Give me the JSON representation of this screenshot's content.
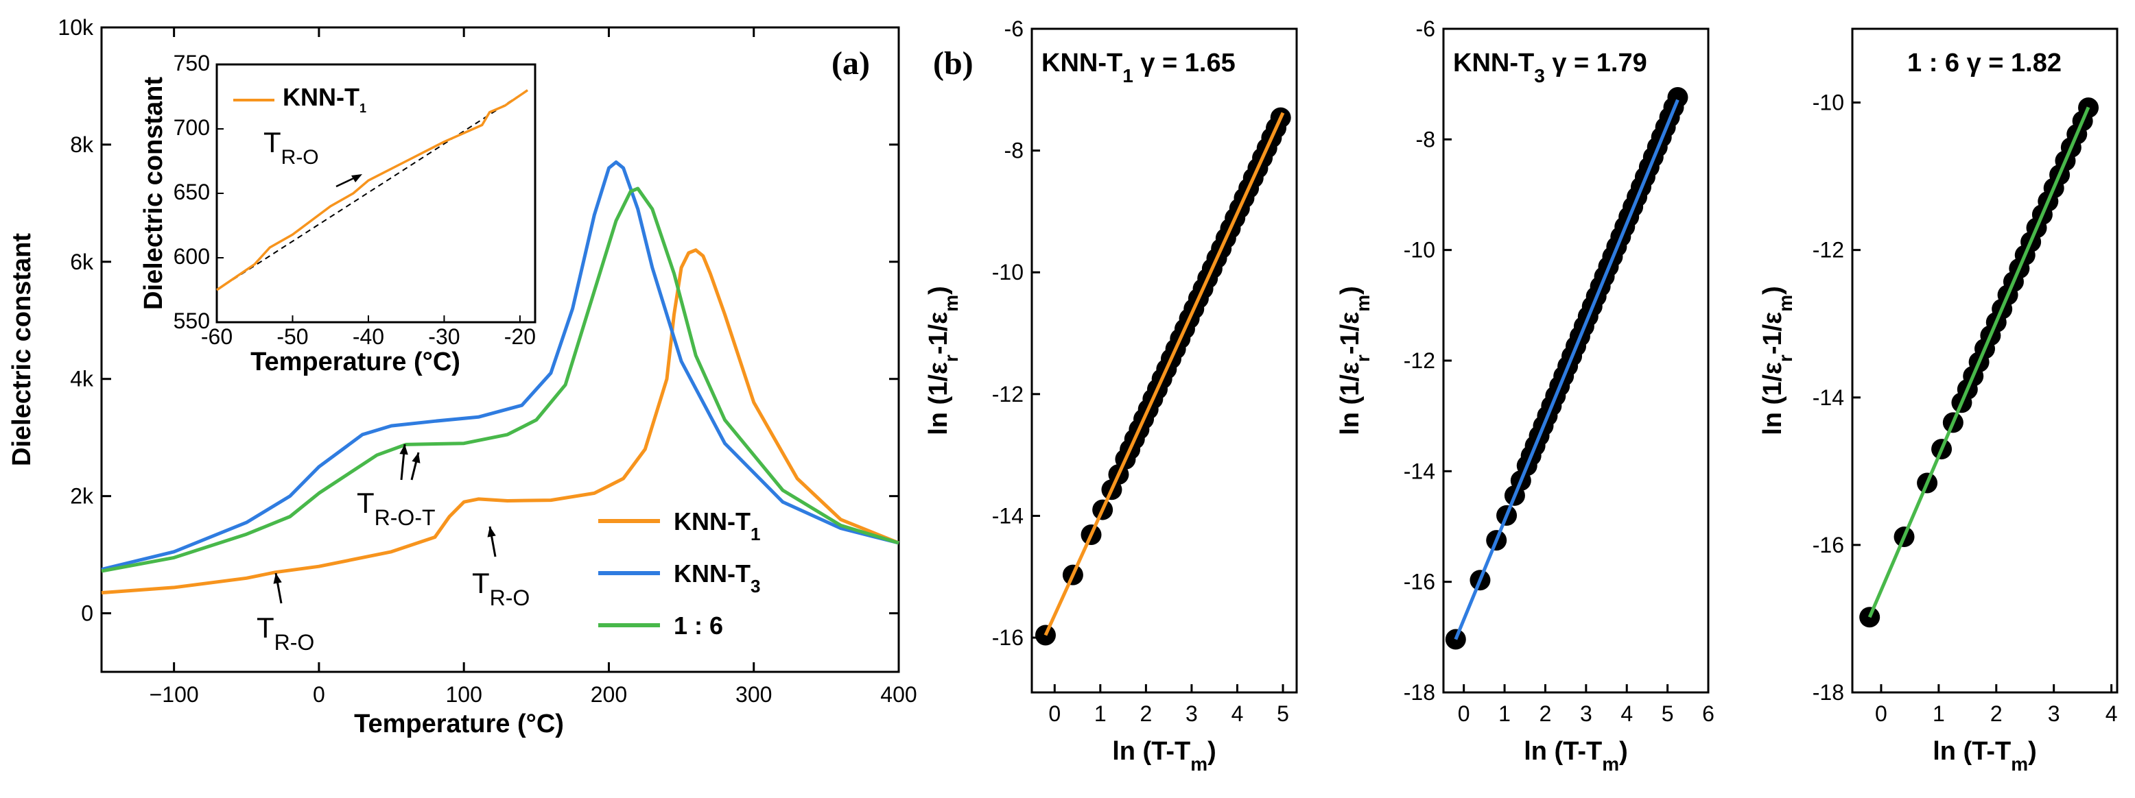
{
  "colors": {
    "orange": "#f7941d",
    "blue": "#2f7ce0",
    "green": "#48b84a",
    "black": "#000000"
  },
  "chart_data": [
    {
      "id": "a",
      "type": "line",
      "panel_label": "(a)",
      "xlabel": "Temperature (°C)",
      "ylabel": "Dielectric constant",
      "xlim": [
        -150,
        400
      ],
      "ylim": [
        -1000,
        10000
      ],
      "xticks": [
        {
          "v": -100,
          "label": "−100"
        },
        {
          "v": 0,
          "label": "0"
        },
        {
          "v": 100,
          "label": "100"
        },
        {
          "v": 200,
          "label": "200"
        },
        {
          "v": 300,
          "label": "300"
        },
        {
          "v": 400,
          "label": "400"
        }
      ],
      "yticks": [
        {
          "v": 0,
          "label": "0"
        },
        {
          "v": 2000,
          "label": "2k"
        },
        {
          "v": 4000,
          "label": "4k"
        },
        {
          "v": 6000,
          "label": "6k"
        },
        {
          "v": 8000,
          "label": "8k"
        },
        {
          "v": 10000,
          "label": "10k"
        }
      ],
      "legend_position": "bottom-right",
      "series": [
        {
          "name": "KNN-T",
          "sub": "1",
          "color": "#f7941d",
          "x": [
            -150,
            -100,
            -50,
            -30,
            0,
            50,
            80,
            90,
            100,
            110,
            130,
            160,
            190,
            210,
            225,
            240,
            245,
            250,
            255,
            260,
            265,
            270,
            280,
            300,
            330,
            360,
            400
          ],
          "y": [
            350,
            440,
            600,
            700,
            800,
            1050,
            1300,
            1650,
            1900,
            1950,
            1920,
            1930,
            2050,
            2300,
            2800,
            4000,
            5100,
            5900,
            6150,
            6200,
            6100,
            5800,
            5100,
            3600,
            2300,
            1600,
            1200
          ]
        },
        {
          "name": "KNN-T",
          "sub": "3",
          "color": "#2f7ce0",
          "x": [
            -150,
            -100,
            -50,
            -20,
            0,
            30,
            50,
            80,
            110,
            140,
            160,
            175,
            190,
            200,
            205,
            210,
            220,
            230,
            250,
            280,
            320,
            360,
            400
          ],
          "y": [
            750,
            1050,
            1550,
            2000,
            2500,
            3050,
            3200,
            3280,
            3350,
            3550,
            4100,
            5200,
            6800,
            7600,
            7700,
            7600,
            6900,
            5900,
            4300,
            2900,
            1900,
            1450,
            1200
          ]
        },
        {
          "name": "1 : 6",
          "sub": "",
          "color": "#48b84a",
          "x": [
            -150,
            -100,
            -50,
            -20,
            0,
            40,
            60,
            100,
            130,
            150,
            170,
            190,
            205,
            215,
            220,
            230,
            245,
            260,
            280,
            320,
            360,
            400
          ],
          "y": [
            720,
            950,
            1350,
            1650,
            2050,
            2700,
            2880,
            2900,
            3050,
            3300,
            3900,
            5500,
            6700,
            7200,
            7250,
            6900,
            5800,
            4400,
            3300,
            2100,
            1500,
            1200
          ]
        }
      ],
      "annotations": [
        {
          "main": "T",
          "sub": "R-O-T"
        },
        {
          "main": "T",
          "sub": "R-O"
        },
        {
          "main": "T",
          "sub": "R-O"
        }
      ]
    },
    {
      "id": "a-inset",
      "type": "line",
      "xlabel": "Temperature (°C)",
      "ylabel": "Dielectric constant",
      "xlim": [
        -60,
        -18
      ],
      "ylim": [
        550,
        750
      ],
      "xticks": [
        -60,
        -50,
        -40,
        -30,
        -20
      ],
      "yticks": [
        550,
        600,
        650,
        700,
        750
      ],
      "series": [
        {
          "name": "KNN-T",
          "sub": "1",
          "color": "#f7941d",
          "x": [
            -60,
            -55,
            -53,
            -50,
            -45,
            -42,
            -40,
            -35,
            -30,
            -25,
            -24,
            -22,
            -19
          ],
          "y": [
            575,
            595,
            608,
            618,
            640,
            650,
            660,
            675,
            690,
            703,
            713,
            718,
            730
          ]
        }
      ],
      "baseline": {
        "x": [
          -60,
          -19
        ],
        "y": [
          575,
          730
        ],
        "style": "dashed"
      },
      "annotations": [
        {
          "main": "T",
          "sub": "R-O"
        }
      ]
    },
    {
      "id": "b1",
      "type": "scatter",
      "panel_label": "(b)",
      "title": {
        "pre": "KNN-T",
        "sub": "1",
        "post": " γ = 1.65"
      },
      "xlabel": {
        "pre": "ln (T-T",
        "sub": "m",
        "post": ")"
      },
      "ylabel": {
        "pre": "ln (1/ε",
        "sub1": "r",
        "mid": "-1/ε",
        "sub2": "m",
        "post": ")"
      },
      "xlim": [
        -0.5,
        5.3
      ],
      "ylim": [
        -16.9,
        -6
      ],
      "xticks": [
        0,
        1,
        2,
        3,
        4,
        5
      ],
      "yticks": [
        -16,
        -14,
        -12,
        -10,
        -8,
        -6
      ],
      "fit_color": "#f7941d",
      "fit": {
        "slope": 1.65,
        "x": [
          -0.2,
          5.0
        ]
      },
      "points_x": [
        -0.2,
        0.4,
        0.8,
        1.05,
        1.25,
        1.4,
        1.55,
        1.65,
        1.75,
        1.85,
        1.95,
        2.05,
        2.15,
        2.25,
        2.35,
        2.45,
        2.55,
        2.65,
        2.75,
        2.85,
        2.95,
        3.05,
        3.15,
        3.25,
        3.35,
        3.45,
        3.55,
        3.65,
        3.75,
        3.85,
        3.95,
        4.05,
        4.15,
        4.25,
        4.35,
        4.45,
        4.55,
        4.65,
        4.75,
        4.85,
        4.95
      ],
      "points_y": [
        -15.96,
        -14.97,
        -14.31,
        -13.9,
        -13.57,
        -13.32,
        -13.07,
        -12.91,
        -12.74,
        -12.58,
        -12.41,
        -12.25,
        -12.08,
        -11.92,
        -11.75,
        -11.59,
        -11.42,
        -11.26,
        -11.09,
        -10.93,
        -10.76,
        -10.6,
        -10.43,
        -10.27,
        -10.1,
        -9.94,
        -9.77,
        -9.61,
        -9.44,
        -9.28,
        -9.11,
        -8.95,
        -8.78,
        -8.62,
        -8.45,
        -8.29,
        -8.12,
        -7.96,
        -7.79,
        -7.63,
        -7.46
      ]
    },
    {
      "id": "b2",
      "type": "scatter",
      "title": {
        "pre": "KNN-T",
        "sub": "3",
        "post": " γ = 1.79"
      },
      "xlabel": {
        "pre": "ln (T-T",
        "sub": "m",
        "post": ")"
      },
      "ylabel": {
        "pre": "ln (1/ε",
        "sub1": "r",
        "mid": "-1/ε",
        "sub2": "m",
        "post": ")"
      },
      "xlim": [
        -0.5,
        6.0
      ],
      "ylim": [
        -18,
        -6
      ],
      "xticks": [
        0,
        1,
        2,
        3,
        4,
        5,
        6
      ],
      "yticks": [
        -18,
        -16,
        -14,
        -12,
        -10,
        -8,
        -6
      ],
      "fit_color": "#2f7ce0",
      "fit": {
        "slope": 1.79,
        "x": [
          -0.2,
          5.25
        ]
      },
      "points_x": [
        -0.2,
        0.4,
        0.8,
        1.05,
        1.25,
        1.4,
        1.55,
        1.65,
        1.75,
        1.85,
        1.95,
        2.05,
        2.15,
        2.25,
        2.35,
        2.45,
        2.55,
        2.65,
        2.75,
        2.85,
        2.95,
        3.05,
        3.15,
        3.25,
        3.35,
        3.45,
        3.55,
        3.65,
        3.75,
        3.85,
        3.95,
        4.05,
        4.15,
        4.25,
        4.35,
        4.45,
        4.55,
        4.65,
        4.75,
        4.85,
        4.95,
        5.05,
        5.15,
        5.25
      ],
      "points_y": [
        -17.04,
        -15.97,
        -15.25,
        -14.8,
        -14.44,
        -14.17,
        -13.9,
        -13.72,
        -13.54,
        -13.36,
        -13.18,
        -13.0,
        -12.82,
        -12.64,
        -12.46,
        -12.28,
        -12.1,
        -11.92,
        -11.74,
        -11.56,
        -11.38,
        -11.2,
        -11.02,
        -10.84,
        -10.66,
        -10.48,
        -10.3,
        -10.12,
        -9.94,
        -9.76,
        -9.58,
        -9.4,
        -9.22,
        -9.04,
        -8.86,
        -8.68,
        -8.5,
        -8.32,
        -8.14,
        -7.96,
        -7.78,
        -7.6,
        -7.42,
        -7.24
      ]
    },
    {
      "id": "b3",
      "type": "scatter",
      "title": {
        "pre": "1 : 6",
        "sub": "",
        "post": " γ = 1.82"
      },
      "xlabel": {
        "pre": "ln (T-T",
        "sub": "m",
        "post": ")"
      },
      "ylabel": {
        "pre": "ln (1/ε",
        "sub1": "r",
        "mid": "-1/ε",
        "sub2": "m",
        "post": ")"
      },
      "xlim": [
        -0.5,
        4.1
      ],
      "ylim": [
        -18,
        -9
      ],
      "xticks": [
        0,
        1,
        2,
        3,
        4
      ],
      "yticks": [
        -18,
        -16,
        -14,
        -12,
        -10
      ],
      "fit_color": "#48b84a",
      "fit": {
        "slope": 1.82,
        "x": [
          -0.2,
          3.6
        ]
      },
      "points_x": [
        -0.2,
        0.4,
        0.8,
        1.05,
        1.25,
        1.4,
        1.5,
        1.6,
        1.7,
        1.8,
        1.9,
        2.0,
        2.1,
        2.2,
        2.3,
        2.4,
        2.5,
        2.6,
        2.7,
        2.8,
        2.9,
        3.0,
        3.1,
        3.2,
        3.3,
        3.4,
        3.5,
        3.6
      ],
      "points_y": [
        -16.98,
        -15.89,
        -15.16,
        -14.7,
        -14.34,
        -14.07,
        -13.89,
        -13.71,
        -13.52,
        -13.34,
        -13.16,
        -12.98,
        -12.8,
        -12.61,
        -12.43,
        -12.25,
        -12.07,
        -11.89,
        -11.7,
        -11.52,
        -11.34,
        -11.16,
        -10.98,
        -10.79,
        -10.61,
        -10.43,
        -10.25,
        -10.07
      ]
    }
  ]
}
